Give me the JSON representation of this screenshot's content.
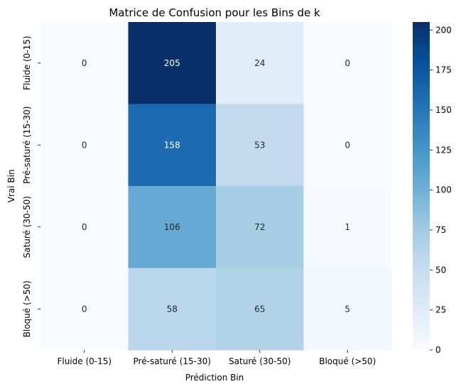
{
  "chart_data": {
    "type": "heatmap",
    "title": "Matrice de Confusion pour les Bins de k",
    "xlabel": "Prédiction Bin",
    "ylabel": "Vrai Bin",
    "x_categories": [
      "Fluide (0-15)",
      "Pré-saturé (15-30)",
      "Saturé (30-50)",
      "Bloqué (>50)"
    ],
    "y_categories": [
      "Fluide (0-15)",
      "Pré-saturé (15-30)",
      "Saturé (30-50)",
      "Bloqué (>50)"
    ],
    "values": [
      [
        0,
        205,
        24,
        0
      ],
      [
        0,
        158,
        53,
        0
      ],
      [
        0,
        106,
        72,
        1
      ],
      [
        0,
        58,
        65,
        5
      ]
    ],
    "colormap": "Blues",
    "vmin": 0,
    "vmax": 205,
    "colorbar_ticks": [
      0,
      25,
      50,
      75,
      100,
      125,
      150,
      175,
      200
    ]
  }
}
